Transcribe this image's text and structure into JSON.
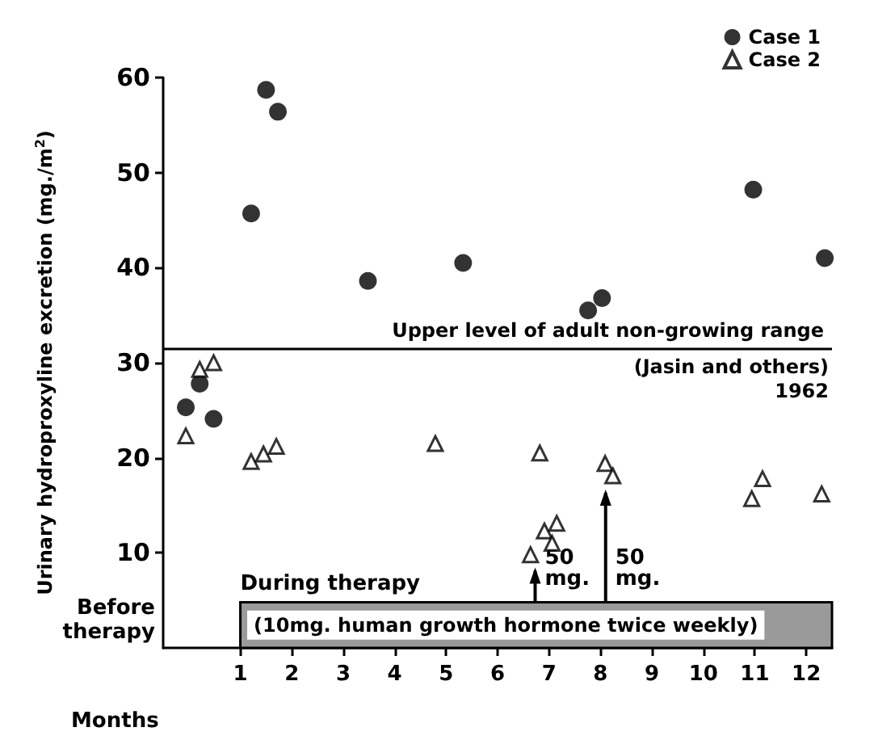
{
  "chart_data": {
    "type": "scatter",
    "ylabel": "Urinary hydroproxyline excretion (mg./m$^{2}$)",
    "xlabel": "Months",
    "xlim": [
      -0.5,
      12.5
    ],
    "xticks": [
      1,
      2,
      3,
      4,
      5,
      6,
      7,
      8,
      9,
      10,
      11,
      12
    ],
    "ylim": [
      0,
      60
    ],
    "yticks": [
      10,
      20,
      30,
      40,
      50,
      60
    ],
    "grid": false,
    "legend": "top right",
    "series": [
      {
        "name": "Case 1",
        "color": "#000000",
        "marker": "circle",
        "x": [
          -0.06,
          0.21,
          0.48,
          1.21,
          1.5,
          1.73,
          3.48,
          5.33,
          7.76,
          8.03,
          10.97,
          12.36
        ],
        "values": [
          25.3,
          27.8,
          24.1,
          45.7,
          58.7,
          56.4,
          38.6,
          40.5,
          35.5,
          36.8,
          48.2,
          41
        ]
      },
      {
        "name": "Case 2",
        "color": "#000000",
        "marker": "triangle",
        "x": [
          -0.06,
          0.21,
          0.48,
          1.21,
          1.45,
          1.7,
          4.79,
          6.64,
          6.82,
          6.91,
          7.06,
          7.15,
          8.09,
          8.24,
          10.94,
          11.15,
          12.3
        ],
        "values": [
          22.3,
          29.3,
          30,
          19.6,
          20.4,
          21.2,
          21.5,
          9.8,
          20.5,
          12.3,
          11,
          13.1,
          19.4,
          18.1,
          15.7,
          17.8,
          16.2
        ]
      }
    ],
    "ref_lines": [
      {
        "axis": "y",
        "value": 31.5,
        "label": "Upper level of adult non-growing range",
        "color": "#000000",
        "line_style": "solid"
      }
    ],
    "bands": [
      {
        "axis": "x",
        "from": 1,
        "to": 12.5,
        "label": "(10mg. human growth hormone twice weekly)",
        "color": "#9a9a9a"
      }
    ],
    "annotations": [
      "(Jasin and others)\n1962",
      "Before\ntherapy",
      "During therapy",
      {
        "text": "50\nmg.",
        "x": 6.73,
        "y": 8.8
      },
      {
        "text": "50\nmg.",
        "x": 8.1,
        "y": 17
      }
    ]
  }
}
